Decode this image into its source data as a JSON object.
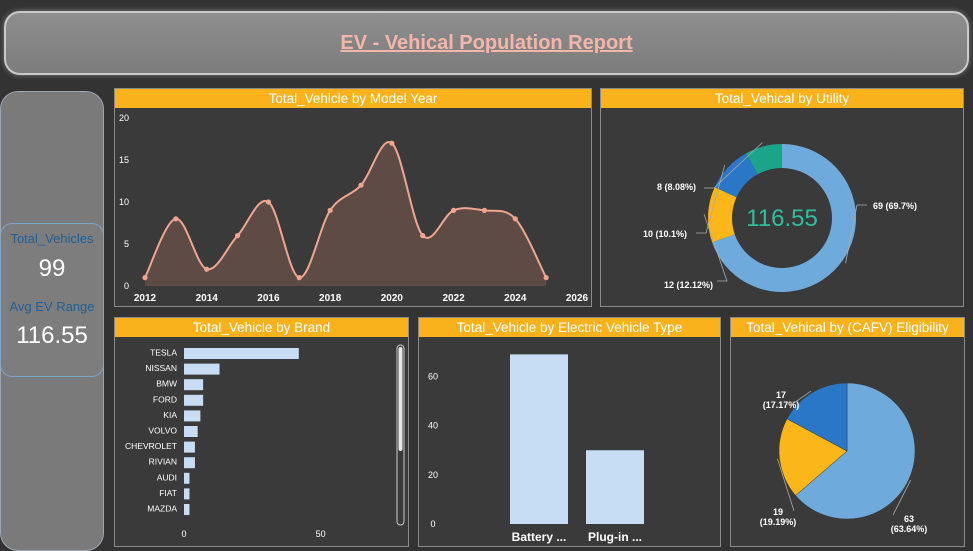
{
  "report_title": "EV - Vehical Population Report",
  "kpis": {
    "total_vehicles_label": "Total_Vehicles",
    "total_vehicles_value": "99",
    "avg_range_label": "Avg EV Range",
    "avg_range_value": "116.55"
  },
  "colors": {
    "accent": "#f9b21c",
    "line": "#f0a58f",
    "area": "#5e4b45",
    "light_blue": "#6faadd",
    "blue": "#2b77c7",
    "teal": "#1aa58a",
    "yellow": "#fbb71a",
    "bar": "#c6ddf3"
  },
  "chart_data": [
    {
      "type": "area",
      "title": "Total_Vehicle by Model Year",
      "x": [
        2012,
        2013,
        2014,
        2015,
        2016,
        2017,
        2018,
        2019,
        2020,
        2021,
        2022,
        2023,
        2024,
        2025
      ],
      "values": [
        1,
        8,
        2,
        6,
        10,
        1,
        9,
        12,
        17,
        6,
        9,
        9,
        8,
        1
      ],
      "xlim": [
        2012,
        2026
      ],
      "xticks": [
        "2012",
        "2014",
        "2016",
        "2018",
        "2020",
        "2022",
        "2024",
        "2026"
      ],
      "ylim": [
        0,
        20
      ],
      "yticks": [
        "0",
        "5",
        "10",
        "15",
        "20"
      ]
    },
    {
      "type": "pie",
      "title": "Total_Vehical by Utility",
      "center_label": "116.55",
      "slices": [
        {
          "value": 69,
          "label": "69 (69.7%)",
          "color": "#6faadd"
        },
        {
          "value": 12,
          "label": "12 (12.12%)",
          "color": "#fbb71a"
        },
        {
          "value": 10,
          "label": "10 (10.1%)",
          "color": "#2b77c7"
        },
        {
          "value": 8,
          "label": "8 (8.08%)",
          "color": "#1aa58a"
        }
      ]
    },
    {
      "type": "bar",
      "title": "Total_Vehicle by Brand",
      "orientation": "horizontal",
      "categories": [
        "TESLA",
        "NISSAN",
        "BMW",
        "FORD",
        "KIA",
        "VOLVO",
        "CHEVROLET",
        "RIVIAN",
        "AUDI",
        "FIAT",
        "MAZDA"
      ],
      "values": [
        42,
        13,
        7,
        7,
        6,
        5,
        4,
        4,
        2,
        2,
        2
      ],
      "xlim": [
        0,
        60
      ],
      "xticks": [
        "0",
        "50"
      ]
    },
    {
      "type": "bar",
      "title": "Total_Vehicle by Electric Vehicle Type",
      "categories": [
        "Battery ...",
        "Plug-in ..."
      ],
      "values": [
        69,
        30
      ],
      "ylim": [
        0,
        72
      ],
      "yticks": [
        "0",
        "20",
        "40",
        "60"
      ]
    },
    {
      "type": "pie",
      "title": "Total_Vehical by (CAFV) Eligibility",
      "slices": [
        {
          "value": 63,
          "label": "63",
          "pct": "(63.64%)",
          "color": "#6faadd"
        },
        {
          "value": 19,
          "label": "19",
          "pct": "(19.19%)",
          "color": "#fbb71a"
        },
        {
          "value": 17,
          "label": "17",
          "pct": "(17.17%)",
          "color": "#2b77c7"
        }
      ]
    }
  ]
}
